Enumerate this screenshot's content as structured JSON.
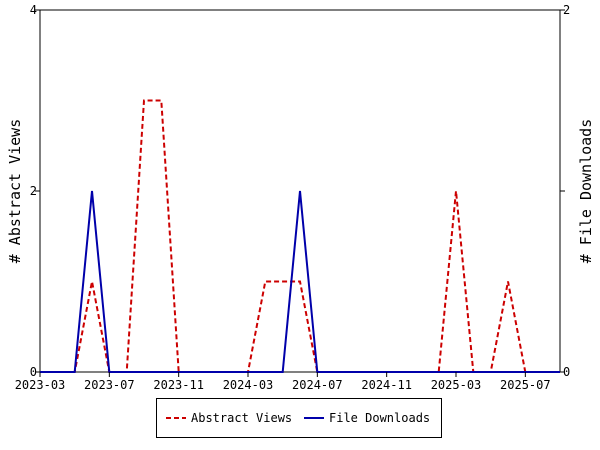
{
  "chart_data": {
    "type": "line",
    "title": "",
    "xlabel": "",
    "x_ticks": [
      "2023-03",
      "2023-07",
      "2023-11",
      "2024-03",
      "2024-07",
      "2024-11",
      "2025-03",
      "2025-07"
    ],
    "x_range": [
      "2023-03",
      "2025-09"
    ],
    "y_left": {
      "label": "# Abstract Views",
      "range": [
        0,
        4
      ],
      "ticks": [
        "0",
        "2",
        "4"
      ]
    },
    "y_right": {
      "label": "# File Downloads",
      "range": [
        0,
        2
      ],
      "ticks": [
        "0",
        "1",
        "2"
      ]
    },
    "grid": false,
    "legend_position": "bottom-center",
    "x": [
      "2023-03",
      "2023-04",
      "2023-05",
      "2023-06",
      "2023-07",
      "2023-08",
      "2023-09",
      "2023-10",
      "2023-11",
      "2023-12",
      "2024-01",
      "2024-02",
      "2024-03",
      "2024-04",
      "2024-05",
      "2024-06",
      "2024-07",
      "2024-08",
      "2024-09",
      "2024-10",
      "2024-11",
      "2024-12",
      "2025-01",
      "2025-02",
      "2025-03",
      "2025-04",
      "2025-05",
      "2025-06",
      "2025-07",
      "2025-08",
      "2025-09"
    ],
    "series": [
      {
        "name": "Abstract Views",
        "axis": "left",
        "color": "#cc0000",
        "style": "dashed",
        "values": [
          0,
          0,
          0,
          1,
          0,
          0,
          3,
          3,
          0,
          0,
          0,
          0,
          0,
          1,
          1,
          1,
          0,
          0,
          0,
          0,
          0,
          0,
          0,
          0,
          2,
          0,
          0,
          1,
          0,
          0,
          0
        ]
      },
      {
        "name": "File Downloads",
        "axis": "right",
        "color": "#0000aa",
        "style": "solid",
        "values": [
          0,
          0,
          0,
          1,
          0,
          0,
          0,
          0,
          0,
          0,
          0,
          0,
          0,
          0,
          0,
          1,
          0,
          0,
          0,
          0,
          0,
          0,
          0,
          0,
          0,
          0,
          0,
          0,
          0,
          0,
          0
        ]
      }
    ]
  }
}
